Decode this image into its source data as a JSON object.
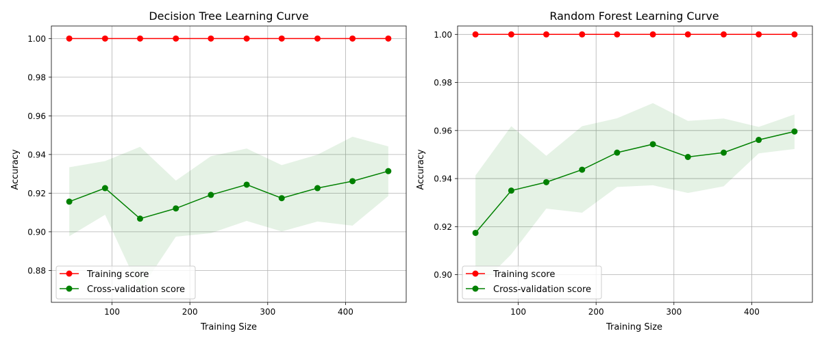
{
  "chart_data": [
    {
      "type": "line",
      "title": "Decision Tree Learning Curve",
      "xlabel": "Training Size",
      "ylabel": "Accuracy",
      "xlim": [
        22,
        478
      ],
      "ylim": [
        0.8635,
        1.0065
      ],
      "xticks": [
        100,
        200,
        300,
        400
      ],
      "yticks": [
        0.88,
        0.9,
        0.92,
        0.94,
        0.96,
        0.98,
        1.0
      ],
      "ytick_labels": [
        "0.88",
        "0.90",
        "0.92",
        "0.94",
        "0.96",
        "0.98",
        "1.00"
      ],
      "grid": true,
      "legend_position": "lower-left",
      "x": [
        45,
        91,
        136,
        182,
        227,
        273,
        318,
        364,
        409,
        455
      ],
      "series": [
        {
          "name": "Training score",
          "color": "#ff0000",
          "values": [
            1.0,
            1.0,
            1.0,
            1.0,
            1.0,
            1.0,
            1.0,
            1.0,
            1.0,
            1.0
          ],
          "band_low": [
            1.0,
            1.0,
            1.0,
            1.0,
            1.0,
            1.0,
            1.0,
            1.0,
            1.0,
            1.0
          ],
          "band_high": [
            1.0,
            1.0,
            1.0,
            1.0,
            1.0,
            1.0,
            1.0,
            1.0,
            1.0,
            1.0
          ]
        },
        {
          "name": "Cross-validation score",
          "color": "#008000",
          "values": [
            0.9156,
            0.9226,
            0.9068,
            0.9121,
            0.9191,
            0.9244,
            0.9174,
            0.9226,
            0.9262,
            0.9314
          ],
          "band_low": [
            0.8977,
            0.9088,
            0.8697,
            0.8975,
            0.8993,
            0.9056,
            0.9002,
            0.9053,
            0.9032,
            0.9185
          ],
          "band_high": [
            0.9334,
            0.9366,
            0.944,
            0.9265,
            0.9391,
            0.9431,
            0.9345,
            0.9399,
            0.9492,
            0.9442
          ]
        }
      ]
    },
    {
      "type": "line",
      "title": "Random Forest Learning Curve",
      "xlabel": "Training Size",
      "ylabel": "Accuracy",
      "xlim": [
        22,
        478
      ],
      "ylim": [
        0.8885,
        1.0035
      ],
      "xticks": [
        100,
        200,
        300,
        400
      ],
      "yticks": [
        0.9,
        0.92,
        0.94,
        0.96,
        0.98,
        1.0
      ],
      "ytick_labels": [
        "0.90",
        "0.92",
        "0.94",
        "0.96",
        "0.98",
        "1.00"
      ],
      "grid": true,
      "legend_position": "lower-left",
      "x": [
        45,
        91,
        136,
        182,
        227,
        273,
        318,
        364,
        409,
        455
      ],
      "series": [
        {
          "name": "Training score",
          "color": "#ff0000",
          "values": [
            1.0,
            1.0,
            1.0,
            1.0,
            1.0,
            1.0,
            1.0,
            1.0,
            1.0,
            1.0
          ],
          "band_low": [
            1.0,
            1.0,
            1.0,
            1.0,
            1.0,
            1.0,
            1.0,
            1.0,
            1.0,
            1.0
          ],
          "band_high": [
            1.0,
            1.0,
            1.0,
            1.0,
            1.0,
            1.0,
            1.0,
            1.0,
            1.0,
            1.0
          ]
        },
        {
          "name": "Cross-validation score",
          "color": "#008000",
          "values": [
            0.9174,
            0.935,
            0.9385,
            0.9437,
            0.9508,
            0.9543,
            0.949,
            0.9508,
            0.9561,
            0.9596
          ],
          "band_low": [
            0.8935,
            0.9085,
            0.9275,
            0.9258,
            0.9365,
            0.9372,
            0.934,
            0.9368,
            0.9505,
            0.9523
          ],
          "band_high": [
            0.9413,
            0.9618,
            0.9495,
            0.9618,
            0.9651,
            0.9714,
            0.964,
            0.965,
            0.9615,
            0.9667
          ]
        }
      ]
    }
  ]
}
